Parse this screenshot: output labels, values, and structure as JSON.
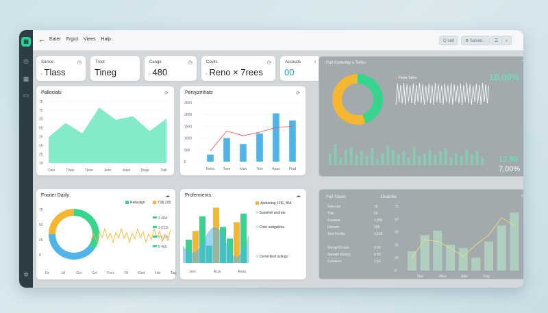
{
  "topbar": {
    "menu": [
      "Eater",
      "Frgict",
      "Viees",
      "Halp"
    ],
    "btn1": "Q sait",
    "btn2": "⚙ Salsiat..."
  },
  "kpis": [
    {
      "label": "Sonice",
      "value": "Tlass",
      "icon": "clock-icon"
    },
    {
      "label": "Troot",
      "value": "Tineg",
      "icon": "none"
    },
    {
      "label": "Cange",
      "value": "480",
      "icon": "clock-icon"
    },
    {
      "label": "Coyits",
      "value": "Reno × 7rees",
      "icon": "clock-icon"
    },
    {
      "label": "Accouds",
      "value": "00",
      "icon": "info-icon"
    }
  ],
  "cards": {
    "area": {
      "title": "Pallocials",
      "x_labels": [
        "Ceie",
        "Tlase",
        "Tkeis",
        "Jeen",
        "Jrass",
        "Dege",
        "Oall"
      ],
      "y_labels": [
        "75",
        "75",
        "35",
        "55",
        "25",
        "15",
        "25",
        "10"
      ],
      "values": [
        42,
        65,
        48,
        90,
        70,
        76,
        52,
        72
      ]
    },
    "bars": {
      "title": "Persyzmhats",
      "y_labels": [
        "2500",
        "2000",
        "1500",
        "1000",
        "500",
        "0"
      ],
      "x_labels": [
        "Nelra",
        "Toen",
        "Ivlan",
        "Tinn",
        "Apas",
        "Prad"
      ],
      "values": [
        300,
        1000,
        750,
        1200,
        2050,
        1750
      ],
      "line": [
        450,
        1300,
        1100,
        1250,
        1450,
        1500
      ]
    },
    "donut": {
      "title": "Fnoiter Daiily",
      "legend1": "Rafuralgh",
      "legend2": "7'36,19S",
      "items": [
        "3 4PA",
        "3 CCS",
        "5 CCS",
        "5 465"
      ],
      "x_labels": [
        "Ds",
        "Jsl",
        "Gcl",
        "Cel",
        "Fecl",
        "Ttl",
        "Eeel",
        "Fsb",
        "Tag"
      ],
      "slices": [
        35,
        40,
        25
      ]
    },
    "perf": {
      "title": "Proferments",
      "legend": "Apdunting 1FIE, 854",
      "items": [
        "Supertiel andrate",
        "Coler aotigabina",
        "Cemertiied ustings"
      ],
      "x_labels": [
        "Jure",
        "Acra",
        "Anda"
      ]
    },
    "dark1": {
      "title": "Pali Coderfay a Teifes",
      "subtitle": "Fleda Taltey",
      "pct1": "18,09%",
      "val2": "12.90",
      "pct2": "7,00%",
      "donut": [
        45,
        55
      ],
      "bars": [
        8,
        14,
        5,
        10,
        12,
        7,
        9,
        6,
        11,
        4,
        8,
        13,
        10,
        7,
        9,
        5,
        12,
        6,
        8,
        10,
        7,
        9,
        11,
        5,
        8,
        6,
        10,
        7,
        9,
        5
      ]
    },
    "dark2": {
      "title": "Pail Toines",
      "col": "Ovalcifie",
      "rows": [
        [
          "Sels coe",
          "16"
        ],
        [
          "Tdts",
          "55"
        ],
        [
          "Eswiess",
          "1,555"
        ],
        [
          "Diseast",
          "155"
        ],
        [
          "Tirst Pecfity",
          "1,165"
        ]
      ],
      "rows2": [
        [
          "Snrogt Kmoos",
          "0 56"
        ],
        [
          "Sanaph Eiratcy",
          "0 55"
        ],
        [
          "Conblors",
          "1,55"
        ]
      ],
      "y_labels": [
        "75",
        "50",
        "20",
        "35",
        "10",
        "0"
      ],
      "x_labels": [
        "Nuc",
        "2Bex",
        "Adle",
        "Zoig"
      ],
      "bars": [
        30,
        55,
        62,
        40,
        35,
        20,
        45,
        70,
        90
      ],
      "line": [
        20,
        48,
        45,
        35,
        22,
        40,
        55,
        82,
        70
      ]
    }
  },
  "colors": {
    "mint": "#6ee6be",
    "blue": "#4fb5e8",
    "green": "#36d48d",
    "orange": "#f5b631",
    "dark": "#a3aaad"
  }
}
